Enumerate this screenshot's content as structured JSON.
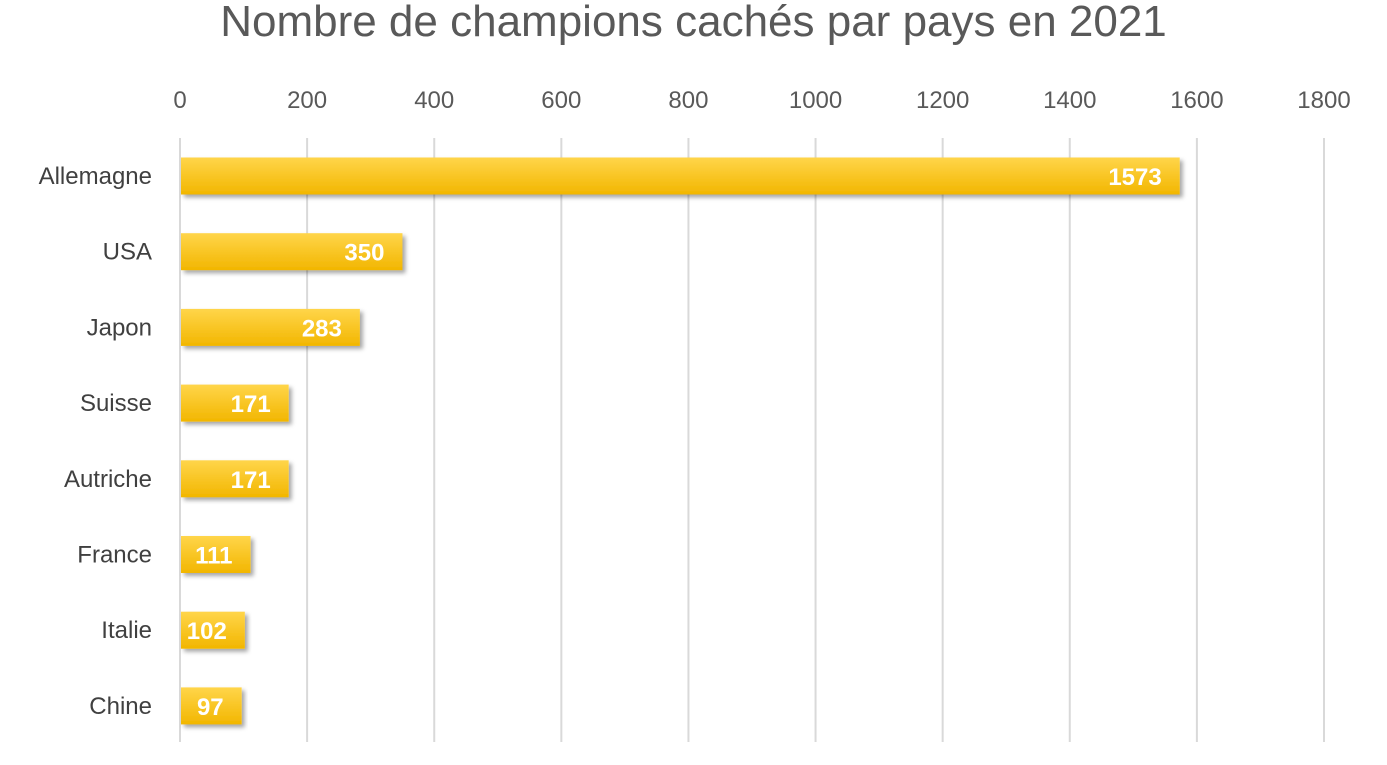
{
  "chart_data": {
    "type": "bar",
    "orientation": "horizontal",
    "title": "Nombre de champions cachés par pays en 2021",
    "categories": [
      "Allemagne",
      "USA",
      "Japon",
      "Suisse",
      "Autriche",
      "France",
      "Italie",
      "Chine"
    ],
    "values": [
      1573,
      350,
      283,
      171,
      171,
      111,
      102,
      97
    ],
    "xlim": [
      0,
      1800
    ],
    "xticks": [
      0,
      200,
      400,
      600,
      800,
      1000,
      1200,
      1400,
      1600,
      1800
    ],
    "xaxis_position": "top",
    "grid": true,
    "legend": "none",
    "colors": {
      "bar_top": "#ffd54a",
      "bar_bottom": "#f2b600",
      "grid": "#d9d9d9",
      "label": "#ffffff"
    }
  }
}
